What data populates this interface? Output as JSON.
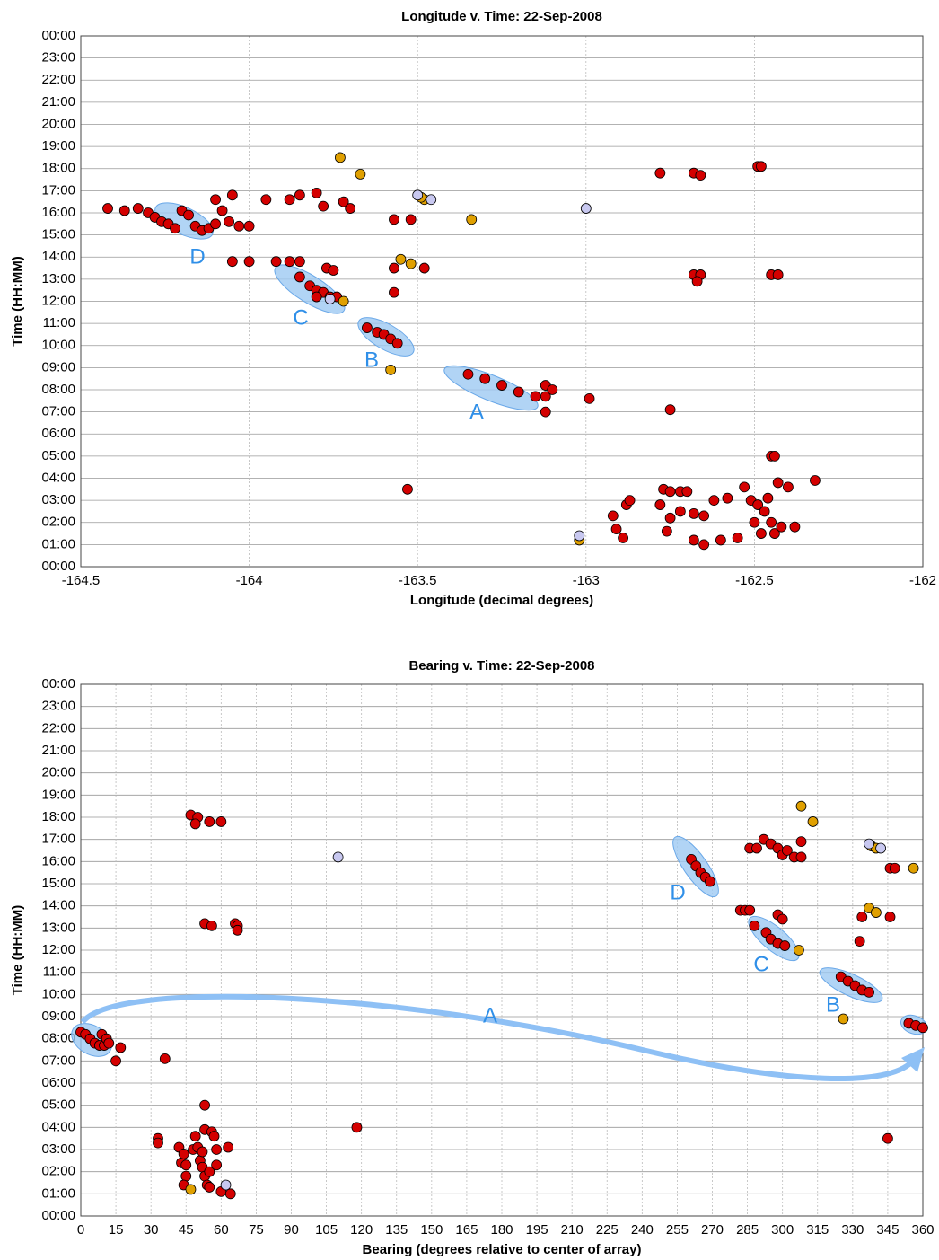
{
  "chart_data": [
    {
      "type": "scatter",
      "title": "Longitude v. Time: 22-Sep-2008",
      "x_label": "Longitude (decimal degrees)",
      "y_label": "Time (HH:MM)",
      "xlim": [
        -164.5,
        -162
      ],
      "ylim": [
        0,
        24
      ],
      "grid": true,
      "xticks": [
        -164.5,
        -164,
        -163.5,
        -163,
        -162.5,
        -162
      ],
      "yticks": [
        {
          "value": 0,
          "label": "00:00"
        },
        {
          "value": 1,
          "label": "01:00"
        },
        {
          "value": 2,
          "label": "02:00"
        },
        {
          "value": 3,
          "label": "03:00"
        },
        {
          "value": 4,
          "label": "04:00"
        },
        {
          "value": 5,
          "label": "05:00"
        },
        {
          "value": 6,
          "label": "06:00"
        },
        {
          "value": 7,
          "label": "07:00"
        },
        {
          "value": 8,
          "label": "08:00"
        },
        {
          "value": 9,
          "label": "09:00"
        },
        {
          "value": 10,
          "label": "10:00"
        },
        {
          "value": 11,
          "label": "11:00"
        },
        {
          "value": 12,
          "label": "12:00"
        },
        {
          "value": 13,
          "label": "13:00"
        },
        {
          "value": 14,
          "label": "14:00"
        },
        {
          "value": 15,
          "label": "15:00"
        },
        {
          "value": 16,
          "label": "16:00"
        },
        {
          "value": 17,
          "label": "17:00"
        },
        {
          "value": 18,
          "label": "18:00"
        },
        {
          "value": 19,
          "label": "19:00"
        },
        {
          "value": 20,
          "label": "20:00"
        },
        {
          "value": 21,
          "label": "21:00"
        },
        {
          "value": 22,
          "label": "22:00"
        },
        {
          "value": 23,
          "label": "23:00"
        },
        {
          "value": 24,
          "label": "00:00"
        }
      ],
      "annotations": [
        "D",
        "C",
        "B",
        "A"
      ],
      "series": [
        {
          "color": "#d40000",
          "x": [
            -164.42,
            -164.37,
            -164.33,
            -164.3,
            -164.28,
            -164.26,
            -164.24,
            -164.22,
            -164.2,
            -164.18,
            -164.16,
            -164.14,
            -164.12,
            -164.1,
            -164.08,
            -164.06,
            -164.03,
            -164.1,
            -164.05,
            -163.95,
            -163.88,
            -163.85,
            -163.8,
            -163.78,
            -163.72,
            -163.7,
            -164.0,
            -164.05,
            -164.0,
            -163.92,
            -163.88,
            -163.85,
            -163.85,
            -163.82,
            -163.8,
            -163.78,
            -163.76,
            -163.74,
            -163.77,
            -163.8,
            -163.75,
            -163.57,
            -163.48,
            -163.57,
            -163.57,
            -163.52,
            -163.53,
            -163.65,
            -163.62,
            -163.6,
            -163.58,
            -163.56,
            -163.35,
            -163.3,
            -163.25,
            -163.2,
            -163.15,
            -163.12,
            -163.12,
            -163.1,
            -163.12,
            -162.99,
            -162.75,
            -162.78,
            -162.68,
            -162.66,
            -162.49,
            -162.48,
            -162.68,
            -162.66,
            -162.67,
            -162.45,
            -162.43,
            -162.92,
            -162.88,
            -162.87,
            -162.89,
            -162.78,
            -162.77,
            -162.75,
            -162.72,
            -162.7,
            -162.75,
            -162.76,
            -162.72,
            -162.68,
            -162.65,
            -162.62,
            -162.58,
            -162.6,
            -162.65,
            -162.68,
            -162.55,
            -162.53,
            -162.51,
            -162.49,
            -162.47,
            -162.45,
            -162.44,
            -162.42,
            -162.48,
            -162.5,
            -162.46,
            -162.43,
            -162.4,
            -162.38,
            -162.32,
            -162.45,
            -162.44,
            -162.91
          ],
          "y": [
            16.2,
            16.1,
            16.2,
            16.0,
            15.8,
            15.6,
            15.5,
            15.3,
            16.1,
            15.9,
            15.4,
            15.2,
            15.3,
            15.5,
            16.1,
            15.6,
            15.4,
            16.6,
            16.8,
            16.6,
            16.6,
            16.8,
            16.9,
            16.3,
            16.5,
            16.2,
            15.4,
            13.8,
            13.8,
            13.8,
            13.8,
            13.8,
            13.1,
            12.7,
            12.5,
            12.4,
            12.2,
            12.2,
            13.5,
            12.2,
            13.4,
            13.5,
            13.5,
            12.4,
            15.7,
            15.7,
            3.5,
            10.8,
            10.6,
            10.5,
            10.3,
            10.1,
            8.7,
            8.5,
            8.2,
            7.9,
            7.7,
            7.7,
            8.2,
            8.0,
            7.0,
            7.6,
            7.1,
            17.8,
            17.8,
            17.7,
            18.1,
            18.1,
            13.2,
            13.2,
            12.9,
            13.2,
            13.2,
            2.3,
            2.8,
            3.0,
            1.3,
            2.8,
            3.5,
            3.4,
            3.4,
            3.4,
            2.2,
            1.6,
            2.5,
            2.4,
            2.3,
            3.0,
            3.1,
            1.2,
            1.0,
            1.2,
            1.3,
            3.6,
            3.0,
            2.8,
            2.5,
            2.0,
            1.5,
            1.8,
            1.5,
            2.0,
            3.1,
            3.8,
            3.6,
            1.8,
            3.9,
            5.0,
            5.0,
            1.7
          ]
        },
        {
          "color": "#e0a000",
          "x": [
            -163.73,
            -163.67,
            -163.48,
            -163.49,
            -163.34,
            -163.55,
            -163.52,
            -163.72,
            -163.58,
            -163.02
          ],
          "y": [
            18.5,
            17.75,
            16.6,
            16.7,
            15.7,
            13.9,
            13.7,
            12.0,
            8.9,
            1.2
          ]
        },
        {
          "color": "#c8c8f0",
          "x": [
            -163.5,
            -163.46,
            -163.0,
            -163.02,
            -163.76
          ],
          "y": [
            16.8,
            16.6,
            16.2,
            1.4,
            12.1
          ]
        }
      ]
    },
    {
      "type": "scatter",
      "title": "Bearing v. Time: 22-Sep-2008",
      "x_label": "Bearing (degrees relative to center of array)",
      "y_label": "Time (HH:MM)",
      "xlim": [
        0,
        360
      ],
      "ylim": [
        0,
        24
      ],
      "grid": true,
      "xticks": [
        0,
        15,
        30,
        45,
        60,
        75,
        90,
        105,
        120,
        135,
        150,
        165,
        180,
        195,
        210,
        225,
        240,
        255,
        270,
        285,
        300,
        315,
        330,
        345,
        360
      ],
      "yticks": [
        {
          "value": 0,
          "label": "00:00"
        },
        {
          "value": 1,
          "label": "01:00"
        },
        {
          "value": 2,
          "label": "02:00"
        },
        {
          "value": 3,
          "label": "03:00"
        },
        {
          "value": 4,
          "label": "04:00"
        },
        {
          "value": 5,
          "label": "05:00"
        },
        {
          "value": 6,
          "label": "06:00"
        },
        {
          "value": 7,
          "label": "07:00"
        },
        {
          "value": 8,
          "label": "08:00"
        },
        {
          "value": 9,
          "label": "09:00"
        },
        {
          "value": 10,
          "label": "10:00"
        },
        {
          "value": 11,
          "label": "11:00"
        },
        {
          "value": 12,
          "label": "12:00"
        },
        {
          "value": 13,
          "label": "13:00"
        },
        {
          "value": 14,
          "label": "14:00"
        },
        {
          "value": 15,
          "label": "15:00"
        },
        {
          "value": 16,
          "label": "16:00"
        },
        {
          "value": 17,
          "label": "17:00"
        },
        {
          "value": 18,
          "label": "18:00"
        },
        {
          "value": 19,
          "label": "19:00"
        },
        {
          "value": 20,
          "label": "20:00"
        },
        {
          "value": 21,
          "label": "21:00"
        },
        {
          "value": 22,
          "label": "22:00"
        },
        {
          "value": 23,
          "label": "23:00"
        },
        {
          "value": 24,
          "label": "00:00"
        }
      ],
      "annotations": [
        "D",
        "C",
        "B",
        "A"
      ],
      "series": [
        {
          "color": "#d40000",
          "x": [
            0,
            2,
            4,
            6,
            8,
            10,
            9,
            11,
            12,
            17,
            15,
            36,
            33,
            33,
            42,
            43,
            44,
            45,
            44,
            45,
            48,
            49,
            50,
            51,
            52,
            53,
            54,
            55,
            53,
            56,
            57,
            58,
            58,
            60,
            63,
            64,
            53,
            55,
            52,
            47,
            50,
            49,
            55,
            60,
            53,
            56,
            66,
            67,
            67,
            118,
            345,
            261,
            263,
            265,
            267,
            269,
            288,
            293,
            295,
            298,
            301,
            298,
            300,
            282,
            284,
            286,
            334,
            333,
            346,
            286,
            289,
            292,
            295,
            298,
            300,
            302,
            305,
            308,
            308,
            346,
            348,
            325,
            328,
            331,
            334,
            337,
            354,
            357,
            360
          ],
          "y": [
            8.3,
            8.2,
            8.0,
            7.8,
            7.7,
            7.7,
            8.2,
            8.0,
            7.8,
            7.6,
            7.0,
            7.1,
            3.5,
            3.3,
            3.1,
            2.4,
            2.8,
            1.8,
            1.4,
            2.3,
            3.0,
            3.6,
            3.1,
            2.5,
            2.2,
            1.8,
            1.4,
            2.0,
            3.9,
            3.8,
            3.6,
            2.3,
            3.0,
            1.1,
            3.1,
            1.0,
            5.0,
            1.3,
            2.9,
            18.1,
            18.0,
            17.7,
            17.8,
            17.8,
            13.2,
            13.1,
            13.2,
            13.1,
            12.9,
            4.0,
            3.5,
            16.1,
            15.8,
            15.5,
            15.3,
            15.1,
            13.1,
            12.8,
            12.5,
            12.3,
            12.2,
            13.6,
            13.4,
            13.8,
            13.8,
            13.8,
            13.5,
            12.4,
            13.5,
            16.6,
            16.6,
            17.0,
            16.8,
            16.6,
            16.3,
            16.5,
            16.2,
            16.2,
            16.9,
            15.7,
            15.7,
            10.8,
            10.6,
            10.4,
            10.2,
            10.1,
            8.7,
            8.6,
            8.5
          ]
        },
        {
          "color": "#e0a000",
          "x": [
            47,
            308,
            313,
            338,
            340,
            356,
            337,
            340,
            307,
            326
          ],
          "y": [
            1.2,
            18.5,
            17.8,
            16.7,
            16.6,
            15.7,
            13.9,
            13.7,
            12.0,
            8.9
          ]
        },
        {
          "color": "#c8c8f0",
          "x": [
            110,
            62,
            337,
            342
          ],
          "y": [
            16.2,
            1.4,
            16.8,
            16.6
          ]
        }
      ]
    }
  ]
}
